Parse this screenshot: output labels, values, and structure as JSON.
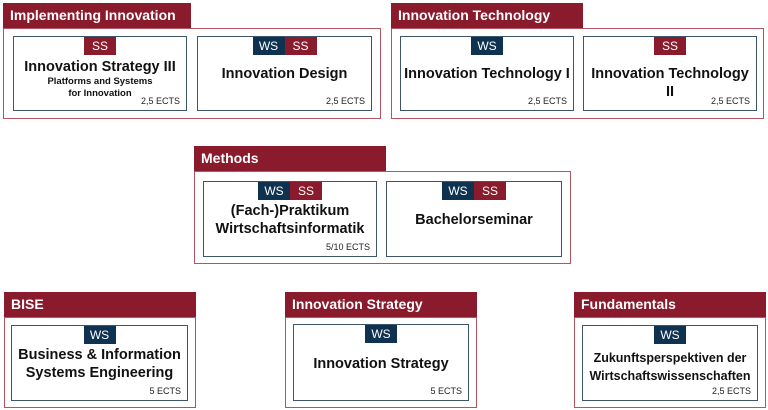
{
  "colors": {
    "ws": "#0f3251",
    "ss": "#8a1b2c",
    "group_border": "#b25560",
    "card_border": "#3d5568"
  },
  "groups": [
    {
      "title": "Implementing Innovation",
      "cards": [
        {
          "badges": [
            "SS"
          ],
          "title": "Innovation Strategy III",
          "subtitle_1": "Platforms and Systems",
          "subtitle_2": "for Innovation",
          "ects": "2,5 ECTS"
        },
        {
          "badges": [
            "WS",
            "SS"
          ],
          "title": "Innovation Design",
          "ects": "2,5 ECTS"
        }
      ]
    },
    {
      "title": "Innovation Technology",
      "cards": [
        {
          "badges": [
            "WS"
          ],
          "title": "Innovation Technology I",
          "ects": "2,5 ECTS"
        },
        {
          "badges": [
            "SS"
          ],
          "title": "Innovation Technology II",
          "ects": "2,5 ECTS"
        }
      ]
    },
    {
      "title": "Methods",
      "cards": [
        {
          "badges": [
            "WS",
            "SS"
          ],
          "title_1": "(Fach-)Praktikum",
          "title_2": "Wirtschaftsinformatik",
          "ects": "5/10 ECTS"
        },
        {
          "badges": [
            "WS",
            "SS"
          ],
          "title": "Bachelorseminar"
        }
      ]
    },
    {
      "title": "BISE",
      "cards": [
        {
          "badges": [
            "WS"
          ],
          "title_1": "Business & Information",
          "title_2": "Systems Engineering",
          "ects": "5 ECTS"
        }
      ]
    },
    {
      "title": "Innovation Strategy",
      "cards": [
        {
          "badges": [
            "WS"
          ],
          "title": "Innovation Strategy",
          "ects": "5 ECTS"
        }
      ]
    },
    {
      "title": "Fundamentals",
      "cards": [
        {
          "badges": [
            "WS"
          ],
          "title_1": "Zukunftsperspektiven der",
          "title_2": "Wirtschaftswissenschaften",
          "ects": "2,5 ECTS"
        }
      ]
    }
  ]
}
